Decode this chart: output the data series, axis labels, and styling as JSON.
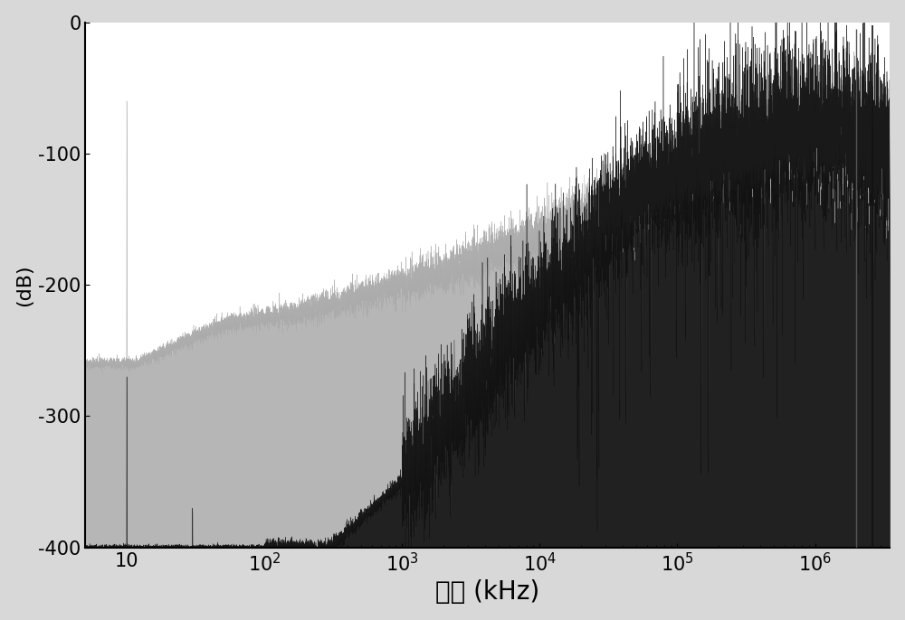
{
  "xlabel": "频率 (kHz)",
  "ylabel": "(dB)",
  "xlim": [
    5,
    3500000
  ],
  "ylim": [
    -400,
    0
  ],
  "yticks": [
    0,
    -100,
    -200,
    -300,
    -400
  ],
  "bg_color": "#d8d8d8",
  "plot_bg": "#ffffff",
  "gray_color": "#aaaaaa",
  "black_color": "#111111",
  "spike1_freq": 10.0,
  "spike2_freq": 2000000.0,
  "xlabel_fontsize": 20,
  "ylabel_fontsize": 16,
  "tick_fontsize": 15,
  "linewidth": 0.3
}
